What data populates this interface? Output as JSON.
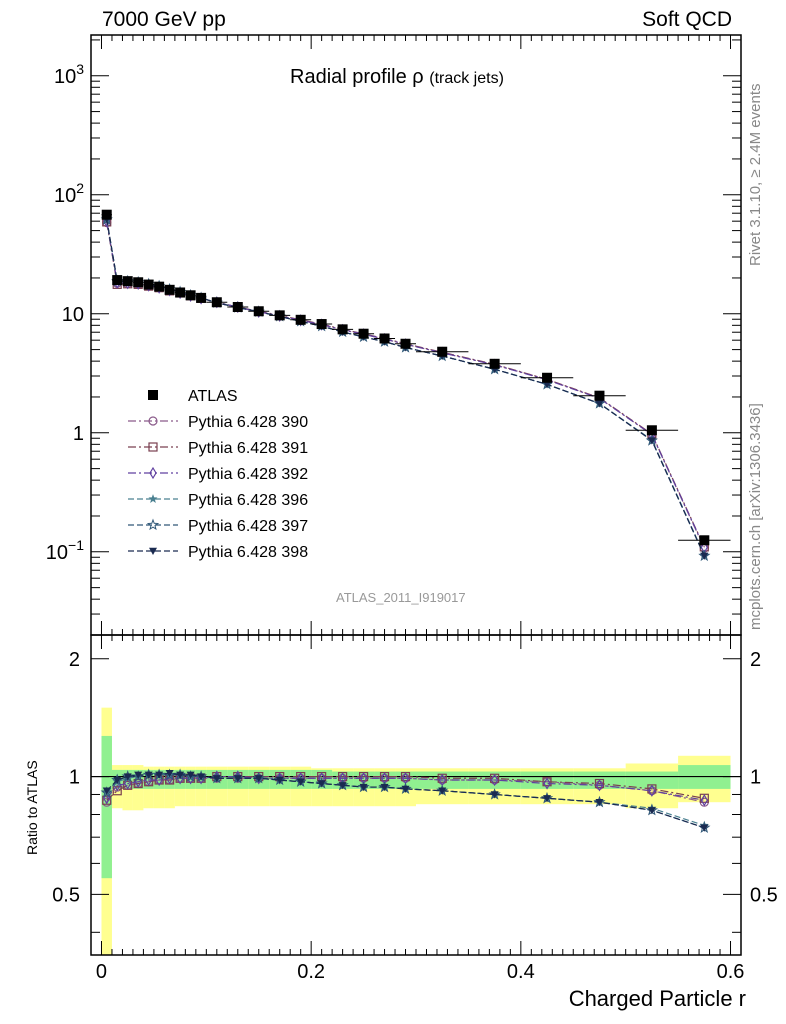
{
  "header": {
    "left": "7000 GeV pp",
    "right": "Soft QCD"
  },
  "side_labels": {
    "top": "Rivet 3.1.10, ≥ 2.4M events",
    "bottom": "mcplots.cern.ch [arXiv:1306.3436]"
  },
  "plot_title": {
    "main": "Radial profile ρ",
    "sub": "(track jets)"
  },
  "analysis_label": "ATLAS_2011_I919017",
  "chart_data": {
    "type": "scatter",
    "xlabel": "Charged Particle r",
    "ylabel_ratio": "Ratio to ATLAS",
    "xlim": [
      -0.01,
      0.61
    ],
    "ylim_main": [
      0.02,
      2200
    ],
    "ylim_ratio": [
      0.35,
      2.3
    ],
    "yscale_main": "log",
    "yscale_ratio": "log",
    "x_ticks": [
      "0",
      "0.2",
      "0.4",
      "0.6"
    ],
    "y_ticks_main": [
      {
        "value": 0.1,
        "base": "10",
        "exp": "−1"
      },
      {
        "value": 1,
        "label": "1"
      },
      {
        "value": 10,
        "label": "10"
      },
      {
        "value": 100,
        "base": "10",
        "exp": "2"
      },
      {
        "value": 1000,
        "base": "10",
        "exp": "3"
      }
    ],
    "y_ticks_ratio": [
      "0.5",
      "1",
      "2"
    ],
    "legend_position": "left",
    "x": [
      0.005,
      0.015,
      0.025,
      0.035,
      0.045,
      0.055,
      0.065,
      0.075,
      0.085,
      0.095,
      0.11,
      0.13,
      0.15,
      0.17,
      0.19,
      0.21,
      0.23,
      0.25,
      0.27,
      0.29,
      0.325,
      0.375,
      0.425,
      0.475,
      0.525,
      0.575
    ],
    "bin_edges": [
      0,
      0.01,
      0.02,
      0.03,
      0.04,
      0.05,
      0.06,
      0.07,
      0.08,
      0.09,
      0.1,
      0.12,
      0.14,
      0.16,
      0.18,
      0.2,
      0.22,
      0.24,
      0.26,
      0.28,
      0.3,
      0.35,
      0.4,
      0.45,
      0.5,
      0.55,
      0.6
    ],
    "atlas": [
      68,
      19.2,
      18.8,
      18.4,
      17.6,
      16.9,
      15.9,
      15.1,
      14.3,
      13.6,
      12.5,
      11.4,
      10.5,
      9.7,
      8.9,
      8.2,
      7.4,
      6.8,
      6.2,
      5.6,
      4.8,
      3.8,
      2.9,
      2.05,
      1.05,
      0.125
    ],
    "series": [
      {
        "name": "Pythia 6.428 390",
        "marker": "circle-open",
        "color": "#8a5a8a",
        "dash": "8,3,2,3",
        "ratio": [
          0.86,
          0.94,
          0.95,
          0.96,
          0.97,
          0.98,
          0.98,
          0.99,
          0.99,
          0.99,
          0.99,
          0.99,
          0.99,
          0.99,
          0.99,
          0.99,
          0.99,
          0.99,
          0.99,
          0.99,
          0.98,
          0.98,
          0.97,
          0.95,
          0.92,
          0.86
        ]
      },
      {
        "name": "Pythia 6.428 391",
        "marker": "square-open",
        "color": "#7a4050",
        "dash": "8,3,2,3",
        "ratio": [
          0.87,
          0.92,
          0.95,
          0.96,
          0.97,
          0.98,
          0.98,
          0.99,
          0.99,
          0.99,
          1.0,
          1.0,
          1.0,
          1.0,
          1.0,
          1.0,
          1.0,
          1.0,
          1.0,
          1.0,
          0.99,
          0.99,
          0.97,
          0.96,
          0.93,
          0.88
        ]
      },
      {
        "name": "Pythia 6.428 392",
        "marker": "diamond-open",
        "color": "#6040a0",
        "dash": "8,3,2,3",
        "ratio": [
          0.88,
          0.95,
          0.96,
          0.97,
          0.98,
          0.98,
          0.99,
          0.99,
          0.99,
          0.99,
          1.0,
          1.0,
          0.99,
          0.99,
          0.99,
          0.99,
          0.99,
          0.99,
          0.99,
          0.99,
          0.98,
          0.98,
          0.96,
          0.95,
          0.92,
          0.87
        ]
      },
      {
        "name": "Pythia 6.428 396",
        "marker": "star-small",
        "color": "#4a8090",
        "dash": "6,3",
        "ratio": [
          0.91,
          0.97,
          0.99,
          1.0,
          1.01,
          1.01,
          1.01,
          1.01,
          1.0,
          1.0,
          0.99,
          0.99,
          0.99,
          0.98,
          0.97,
          0.96,
          0.95,
          0.94,
          0.94,
          0.93,
          0.92,
          0.9,
          0.88,
          0.86,
          0.83,
          0.75
        ]
      },
      {
        "name": "Pythia 6.428 397",
        "marker": "star-open",
        "color": "#305878",
        "dash": "6,3",
        "ratio": [
          0.91,
          0.98,
          1.0,
          1.0,
          1.01,
          1.01,
          1.01,
          1.01,
          1.0,
          1.0,
          0.99,
          0.99,
          0.99,
          0.98,
          0.97,
          0.96,
          0.95,
          0.94,
          0.94,
          0.93,
          0.92,
          0.9,
          0.88,
          0.86,
          0.82,
          0.74
        ]
      },
      {
        "name": "Pythia 6.428 398",
        "marker": "triangle-down",
        "color": "#1a2a50",
        "dash": "6,3",
        "ratio": [
          0.92,
          0.98,
          1.0,
          1.01,
          1.01,
          1.01,
          1.02,
          1.01,
          1.01,
          1.0,
          0.99,
          0.99,
          0.99,
          0.98,
          0.97,
          0.96,
          0.95,
          0.94,
          0.94,
          0.93,
          0.92,
          0.9,
          0.88,
          0.86,
          0.82,
          0.74
        ]
      }
    ],
    "band_yellow": [
      [
        0.35,
        1.5
      ],
      [
        0.83,
        1.07
      ],
      [
        0.82,
        1.07
      ],
      [
        0.82,
        1.07
      ],
      [
        0.83,
        1.06
      ],
      [
        0.83,
        1.06
      ],
      [
        0.83,
        1.06
      ],
      [
        0.84,
        1.06
      ],
      [
        0.84,
        1.06
      ],
      [
        0.84,
        1.06
      ],
      [
        0.84,
        1.06
      ],
      [
        0.84,
        1.06
      ],
      [
        0.84,
        1.06
      ],
      [
        0.84,
        1.06
      ],
      [
        0.84,
        1.06
      ],
      [
        0.84,
        1.05
      ],
      [
        0.84,
        1.05
      ],
      [
        0.84,
        1.05
      ],
      [
        0.84,
        1.05
      ],
      [
        0.84,
        1.05
      ],
      [
        0.85,
        1.05
      ],
      [
        0.85,
        1.05
      ],
      [
        0.85,
        1.05
      ],
      [
        0.85,
        1.05
      ],
      [
        0.83,
        1.08
      ],
      [
        0.86,
        1.13
      ]
    ],
    "band_green": [
      [
        0.55,
        1.27
      ],
      [
        0.93,
        1.04
      ],
      [
        0.93,
        1.04
      ],
      [
        0.93,
        1.04
      ],
      [
        0.93,
        1.04
      ],
      [
        0.93,
        1.04
      ],
      [
        0.93,
        1.04
      ],
      [
        0.93,
        1.04
      ],
      [
        0.93,
        1.04
      ],
      [
        0.93,
        1.04
      ],
      [
        0.93,
        1.04
      ],
      [
        0.93,
        1.04
      ],
      [
        0.93,
        1.04
      ],
      [
        0.93,
        1.04
      ],
      [
        0.93,
        1.04
      ],
      [
        0.93,
        1.04
      ],
      [
        0.93,
        1.03
      ],
      [
        0.93,
        1.03
      ],
      [
        0.93,
        1.03
      ],
      [
        0.93,
        1.03
      ],
      [
        0.93,
        1.03
      ],
      [
        0.93,
        1.03
      ],
      [
        0.93,
        1.03
      ],
      [
        0.93,
        1.03
      ],
      [
        0.93,
        1.03
      ],
      [
        0.93,
        1.07
      ]
    ],
    "legend_data_label": "ATLAS",
    "colors": {
      "yellow_band": "#ffff90",
      "green_band": "#90f090",
      "atlas": "#000000"
    }
  }
}
